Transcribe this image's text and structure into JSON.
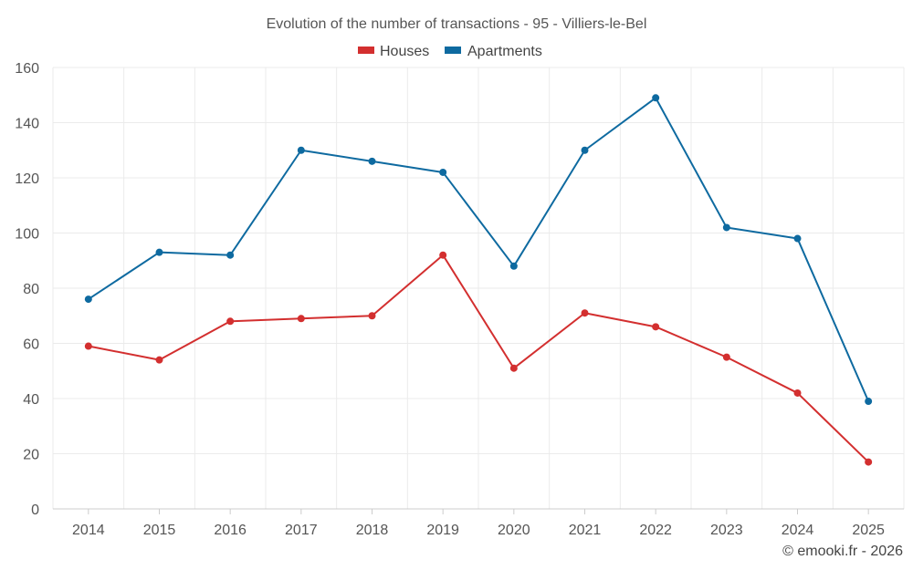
{
  "chart_data": {
    "type": "line",
    "title": "Evolution of the number of transactions - 95 - Villiers-le-Bel",
    "categories": [
      "2014",
      "2015",
      "2016",
      "2017",
      "2018",
      "2019",
      "2020",
      "2021",
      "2022",
      "2023",
      "2024",
      "2025"
    ],
    "series": [
      {
        "name": "Houses",
        "color": "#d32f2f",
        "values": [
          59,
          54,
          68,
          69,
          70,
          92,
          51,
          71,
          66,
          55,
          42,
          17
        ]
      },
      {
        "name": "Apartments",
        "color": "#0e6aa0",
        "values": [
          76,
          93,
          92,
          130,
          126,
          122,
          88,
          130,
          149,
          102,
          98,
          39
        ]
      }
    ],
    "ylim": [
      0,
      160
    ],
    "yticks": [
      "0",
      "20",
      "40",
      "60",
      "80",
      "100",
      "120",
      "140",
      "160"
    ],
    "grid": true,
    "legend_position": "top-center"
  },
  "credit": "© emooki.fr - 2026"
}
